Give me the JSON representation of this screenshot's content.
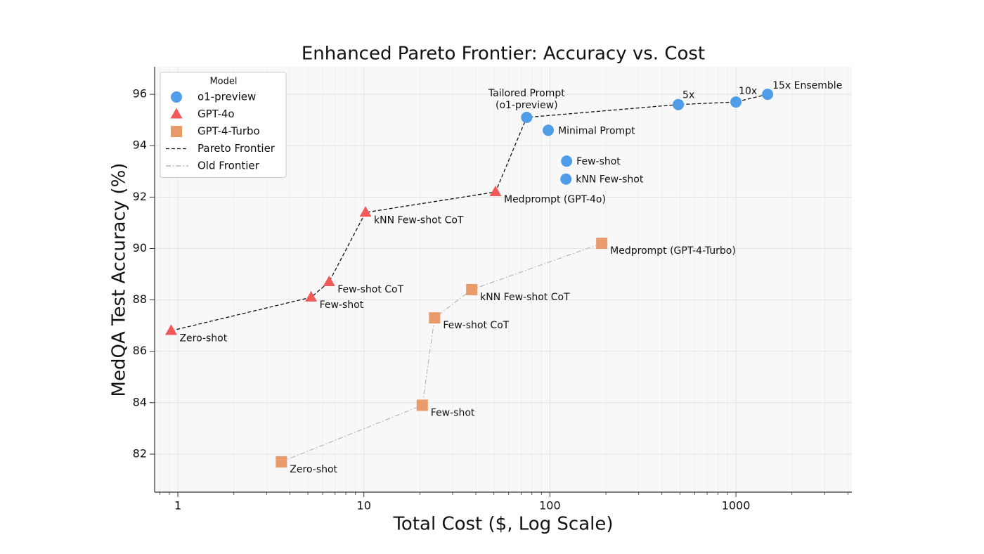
{
  "chart_data": {
    "type": "scatter",
    "title": "Enhanced Pareto Frontier: Accuracy vs. Cost",
    "x_label": "Total Cost ($, Log Scale)",
    "y_label": "MedQA Test Accuracy (%)",
    "xscale": "log",
    "xlim": [
      0.75,
      4200
    ],
    "ylim": [
      80.52,
      97.07
    ],
    "xticks": [
      1,
      10,
      100,
      1000
    ],
    "yticks": [
      82,
      84,
      86,
      88,
      90,
      92,
      94,
      96
    ],
    "grid": true,
    "legend": {
      "title": "Model",
      "position": "upper left"
    },
    "series": [
      {
        "name": "o1-preview",
        "color": "#4f9de9",
        "marker": "circle",
        "x": [
          75,
          98,
          123,
          122,
          490,
          1000,
          1480
        ],
        "values": [
          95.1,
          94.6,
          93.4,
          92.7,
          95.6,
          95.7,
          96.0
        ],
        "labels": [
          "Tailored Prompt\n(o1-preview)",
          "Minimal Prompt",
          "Few-shot",
          "kNN Few-shot",
          "5x",
          "10x",
          "15x Ensemble"
        ]
      },
      {
        "name": "GPT-4o",
        "color": "#f25a5a",
        "marker": "triangle",
        "x": [
          0.92,
          5.2,
          6.5,
          10.2,
          51
        ],
        "values": [
          86.8,
          88.1,
          88.7,
          91.4,
          92.2
        ],
        "labels": [
          "Zero-shot",
          "Few-shot",
          "Few-shot CoT",
          "kNN Few-shot CoT",
          "Medprompt (GPT-4o)"
        ]
      },
      {
        "name": "GPT-4-Turbo",
        "color": "#e99a6b",
        "marker": "square",
        "x": [
          3.6,
          20.6,
          24,
          38,
          190
        ],
        "values": [
          81.7,
          83.9,
          87.3,
          88.4,
          90.2
        ],
        "labels": [
          "Zero-shot",
          "Few-shot",
          "Few-shot CoT",
          "kNN Few-shot CoT",
          "Medprompt (GPT-4-Turbo)"
        ]
      }
    ],
    "lines": [
      {
        "name": "Pareto Frontier",
        "color": "#111111",
        "style": "dashed",
        "x": [
          0.92,
          5.2,
          6.5,
          10.2,
          51,
          75,
          490,
          1000,
          1480
        ],
        "values": [
          86.8,
          88.1,
          88.7,
          91.4,
          92.2,
          95.1,
          95.6,
          95.7,
          96.0
        ]
      },
      {
        "name": "Old Frontier",
        "color": "#aaaaaa",
        "style": "dashdot",
        "x": [
          3.6,
          20.6,
          24,
          38,
          190
        ],
        "values": [
          81.7,
          83.9,
          87.3,
          88.4,
          90.2
        ]
      }
    ]
  }
}
